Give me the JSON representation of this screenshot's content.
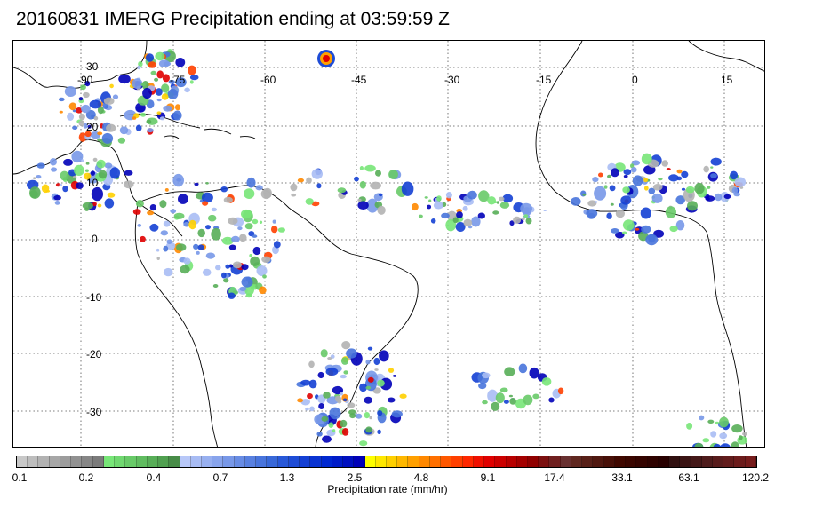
{
  "title": "20160831 IMERG Precipitation ending at 03:59:59 Z",
  "map": {
    "lat_labels": [
      "30",
      "20",
      "10",
      "0",
      "-10",
      "-20",
      "-30"
    ],
    "lon_labels": [
      "-90",
      "-75",
      "-60",
      "-45",
      "-30",
      "-15",
      "0",
      "15"
    ],
    "gridline_color": "#555555",
    "coastline_color": "#000000"
  },
  "colorbar": {
    "title": "Precipitation rate (mm/hr)",
    "tick_labels": [
      "0.1",
      "0.2",
      "0.4",
      "0.7",
      "1.3",
      "2.5",
      "4.8",
      "9.1",
      "17.4",
      "33.1",
      "63.1",
      "120.2"
    ],
    "colors": [
      "#c8c8c8",
      "#bdbdbd",
      "#b2b2b2",
      "#a7a7a7",
      "#9c9c9c",
      "#919191",
      "#868686",
      "#7b7b7b",
      "#78e678",
      "#70d870",
      "#68ca68",
      "#60bc60",
      "#58ae58",
      "#50a050",
      "#488c48",
      "#b8c8f8",
      "#a8bcf4",
      "#98b0f0",
      "#88a4ec",
      "#7898e8",
      "#688ce4",
      "#5880e0",
      "#4874dc",
      "#3868d8",
      "#2858d8",
      "#1e4cd6",
      "#1440d4",
      "#0a34d2",
      "#0028d0",
      "#001cc8",
      "#0010c0",
      "#0000b8",
      "#ffff00",
      "#ffe800",
      "#ffd000",
      "#ffb800",
      "#ffa000",
      "#ff8800",
      "#ff7000",
      "#ff5800",
      "#ff4000",
      "#ff2800",
      "#f01000",
      "#e00000",
      "#cc0000",
      "#b80000",
      "#a40000",
      "#900000",
      "#7c1010",
      "#702020",
      "#683030",
      "#602820",
      "#582018",
      "#501810",
      "#481008",
      "#400800",
      "#3a0600",
      "#340400",
      "#2e0200",
      "#280000",
      "#301010",
      "#3a1414",
      "#441818",
      "#4e1c1c",
      "#581c1c",
      "#621c1c",
      "#6c1c1c",
      "#761c1c"
    ]
  }
}
